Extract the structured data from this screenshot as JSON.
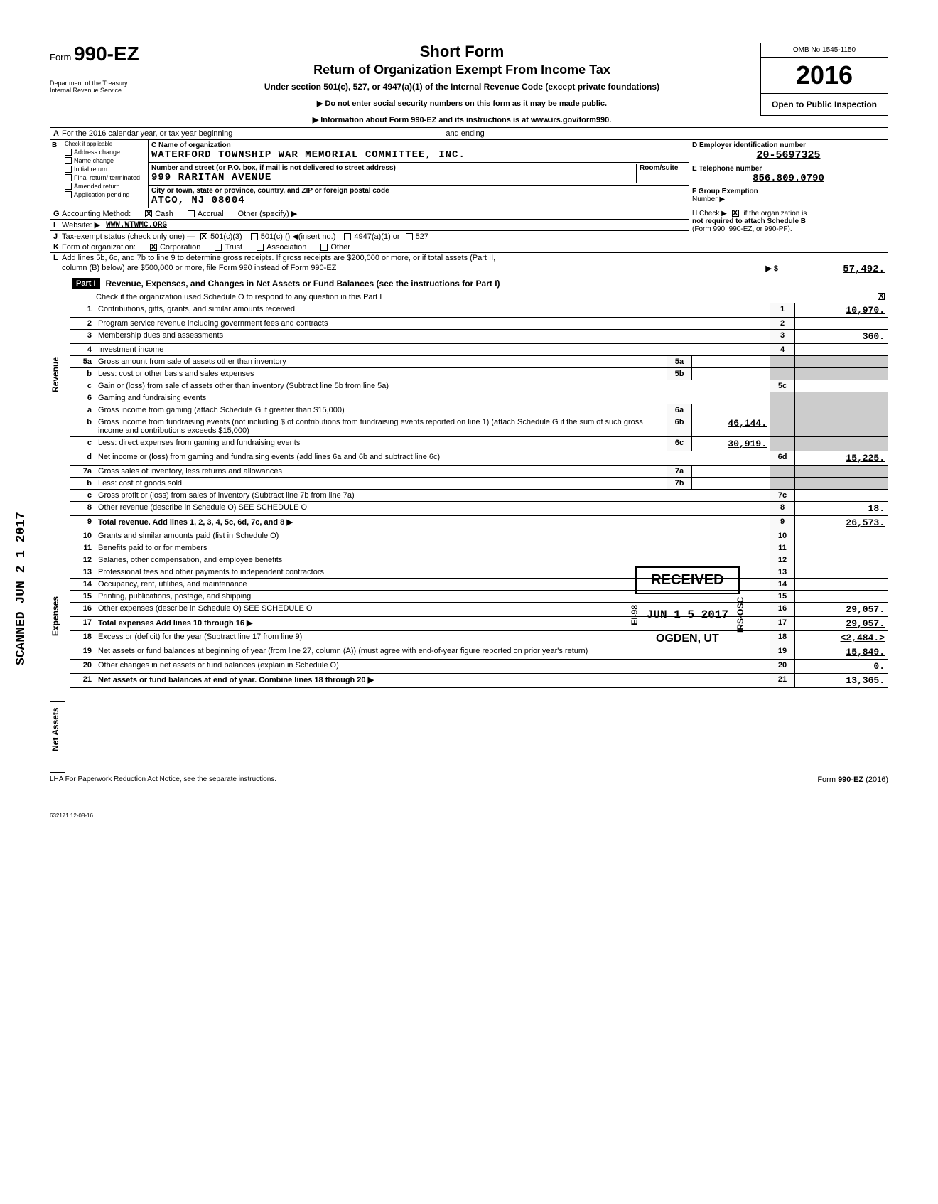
{
  "header": {
    "form_prefix": "Form",
    "form_number": "990-EZ",
    "title": "Short Form",
    "subtitle": "Return of Organization Exempt From Income Tax",
    "under": "Under section 501(c), 527, or 4947(a)(1) of the Internal Revenue Code (except private foundations)",
    "warn1": "▶ Do not enter social security numbers on this form as it may be made public.",
    "warn2": "▶ Information about Form 990-EZ and its instructions is at www.irs.gov/form990.",
    "omb": "OMB No 1545-1150",
    "year": "2016",
    "open": "Open to Public Inspection",
    "dept1": "Department of the Treasury",
    "dept2": "Internal Revenue Service"
  },
  "secA": {
    "calendar": "For the 2016 calendar year, or tax year beginning",
    "ending": "and ending"
  },
  "checkboxes": {
    "title": "Check if applicable",
    "items": [
      "Address change",
      "Name change",
      "Initial return",
      "Final return/ terminated",
      "Amended return",
      "Application pending"
    ]
  },
  "org": {
    "name_label": "C Name of organization",
    "name": "WATERFORD TOWNSHIP WAR MEMORIAL COMMITTEE, INC.",
    "addr_label": "Number and street (or P.O. box, if mail is not delivered to street address)",
    "room_label": "Room/suite",
    "address": "999 RARITAN AVENUE",
    "city_label": "City or town, state or province, country, and ZIP or foreign postal code",
    "city": "ATCO, NJ  08004"
  },
  "right": {
    "ein_label": "D Employer identification number",
    "ein": "20-5697325",
    "tel_label": "E  Telephone number",
    "tel": "856.809.0790",
    "group_label": "F  Group Exemption",
    "number_label": "Number ▶",
    "h_check": "H Check ▶",
    "h_text": "if the organization is",
    "h_text2": "not required to attach Schedule B",
    "h_text3": "(Form 990, 990-EZ, or 990-PF)."
  },
  "lines": {
    "g": "Accounting Method:",
    "g_cash": "Cash",
    "g_accrual": "Accrual",
    "g_other": "Other (specify) ▶",
    "i": "Website: ▶",
    "i_val": "WWW.WTWMC.ORG",
    "j": "Tax-exempt status (check only one) —",
    "j_501c3": "501(c)(3)",
    "j_501c": "501(c) (",
    "j_insert": ") ◀(insert no.)",
    "j_4947": "4947(a)(1) or",
    "j_527": "527",
    "k": "Form of organization:",
    "k_corp": "Corporation",
    "k_trust": "Trust",
    "k_assoc": "Association",
    "k_other": "Other",
    "l": "Add lines 5b, 6c, and 7b to line 9 to determine gross receipts. If gross receipts are $200,000 or more, or if total assets (Part II,",
    "l2": "column (B) below) are $500,000 or more, file Form 990 instead of Form 990-EZ",
    "l_amt": "57,492."
  },
  "part1": {
    "label": "Part I",
    "title": "Revenue, Expenses, and Changes in Net Assets or Fund Balances (see the instructions for Part I)",
    "check": "Check if the organization used Schedule O to respond to any question in this Part I"
  },
  "rows": [
    {
      "n": "1",
      "desc": "Contributions, gifts, grants, and similar amounts received",
      "rn": "1",
      "amt": "10,970."
    },
    {
      "n": "2",
      "desc": "Program service revenue including government fees and contracts",
      "rn": "2",
      "amt": ""
    },
    {
      "n": "3",
      "desc": "Membership dues and assessments",
      "rn": "3",
      "amt": "360."
    },
    {
      "n": "4",
      "desc": "Investment income",
      "rn": "4",
      "amt": ""
    },
    {
      "n": "5a",
      "desc": "Gross amount from sale of assets other than inventory",
      "mid": "5a",
      "midamt": ""
    },
    {
      "n": "b",
      "desc": "Less: cost or other basis and sales expenses",
      "mid": "5b",
      "midamt": ""
    },
    {
      "n": "c",
      "desc": "Gain or (loss) from sale of assets other than inventory (Subtract line 5b from line 5a)",
      "rn": "5c",
      "amt": ""
    },
    {
      "n": "6",
      "desc": "Gaming and fundraising events"
    },
    {
      "n": "a",
      "desc": "Gross income from gaming (attach Schedule G if greater than $15,000)",
      "mid": "6a",
      "midamt": ""
    },
    {
      "n": "b",
      "desc": "Gross income from fundraising events (not including $                              of contributions from fundraising events reported on line 1) (attach Schedule G if the sum of such gross income and contributions exceeds $15,000)",
      "mid": "6b",
      "midamt": "46,144."
    },
    {
      "n": "c",
      "desc": "Less: direct expenses from gaming and fundraising events",
      "mid": "6c",
      "midamt": "30,919."
    },
    {
      "n": "d",
      "desc": "Net income or (loss) from gaming and fundraising events (add lines 6a and 6b and subtract line 6c)",
      "rn": "6d",
      "amt": "15,225."
    },
    {
      "n": "7a",
      "desc": "Gross sales of inventory, less returns and allowances",
      "mid": "7a",
      "midamt": ""
    },
    {
      "n": "b",
      "desc": "Less: cost of goods sold",
      "mid": "7b",
      "midamt": ""
    },
    {
      "n": "c",
      "desc": "Gross profit or (loss) from sales of inventory (Subtract line 7b from line 7a)",
      "rn": "7c",
      "amt": ""
    },
    {
      "n": "8",
      "desc": "Other revenue (describe in Schedule O)                                        SEE SCHEDULE O",
      "rn": "8",
      "amt": "18."
    },
    {
      "n": "9",
      "desc": "Total revenue. Add lines 1, 2, 3, 4, 5c, 6d, 7c, and 8",
      "rn": "9",
      "amt": "26,573.",
      "bold": true,
      "arrow": true
    },
    {
      "n": "10",
      "desc": "Grants and similar amounts paid (list in Schedule O)",
      "rn": "10",
      "amt": ""
    },
    {
      "n": "11",
      "desc": "Benefits paid to or for members",
      "rn": "11",
      "amt": ""
    },
    {
      "n": "12",
      "desc": "Salaries, other compensation, and employee benefits",
      "rn": "12",
      "amt": ""
    },
    {
      "n": "13",
      "desc": "Professional fees and other payments to independent contractors",
      "rn": "13",
      "amt": ""
    },
    {
      "n": "14",
      "desc": "Occupancy, rent, utilities, and maintenance",
      "rn": "14",
      "amt": ""
    },
    {
      "n": "15",
      "desc": "Printing, publications, postage, and shipping",
      "rn": "15",
      "amt": ""
    },
    {
      "n": "16",
      "desc": "Other expenses (describe in Schedule O)                                       SEE SCHEDULE O",
      "rn": "16",
      "amt": "29,057."
    },
    {
      "n": "17",
      "desc": "Total expenses  Add lines 10 through 16",
      "rn": "17",
      "amt": "29,057.",
      "bold": true,
      "arrow": true
    },
    {
      "n": "18",
      "desc": "Excess or (deficit) for the year (Subtract line 17 from line 9)",
      "rn": "18",
      "amt": "<2,484.>"
    },
    {
      "n": "19",
      "desc": "Net assets or fund balances at beginning of year (from line 27, column (A)) (must agree with end-of-year figure reported on prior year's return)",
      "rn": "19",
      "amt": "15,849."
    },
    {
      "n": "20",
      "desc": "Other changes in net assets or fund balances (explain in Schedule O)",
      "rn": "20",
      "amt": "0."
    },
    {
      "n": "21",
      "desc": "Net assets or fund balances at end of year. Combine lines 18 through 20",
      "rn": "21",
      "amt": "13,365.",
      "bold": true,
      "arrow": true
    }
  ],
  "side_labels": {
    "revenue": "Revenue",
    "expenses": "Expenses",
    "netassets": "Net Assets"
  },
  "stamps": {
    "scanned": "SCANNED JUN 2 1 2017",
    "received": "RECEIVED",
    "received_date": "JUN 1 5 2017",
    "received_loc": "OGDEN, UT",
    "ei98": "EI-98",
    "irs_osc": "IRS-OSC"
  },
  "footer": {
    "lha": "LHA  For Paperwork Reduction Act Notice, see the separate instructions.",
    "form": "Form 990-EZ (2016)",
    "code": "632171  12-08-16"
  }
}
